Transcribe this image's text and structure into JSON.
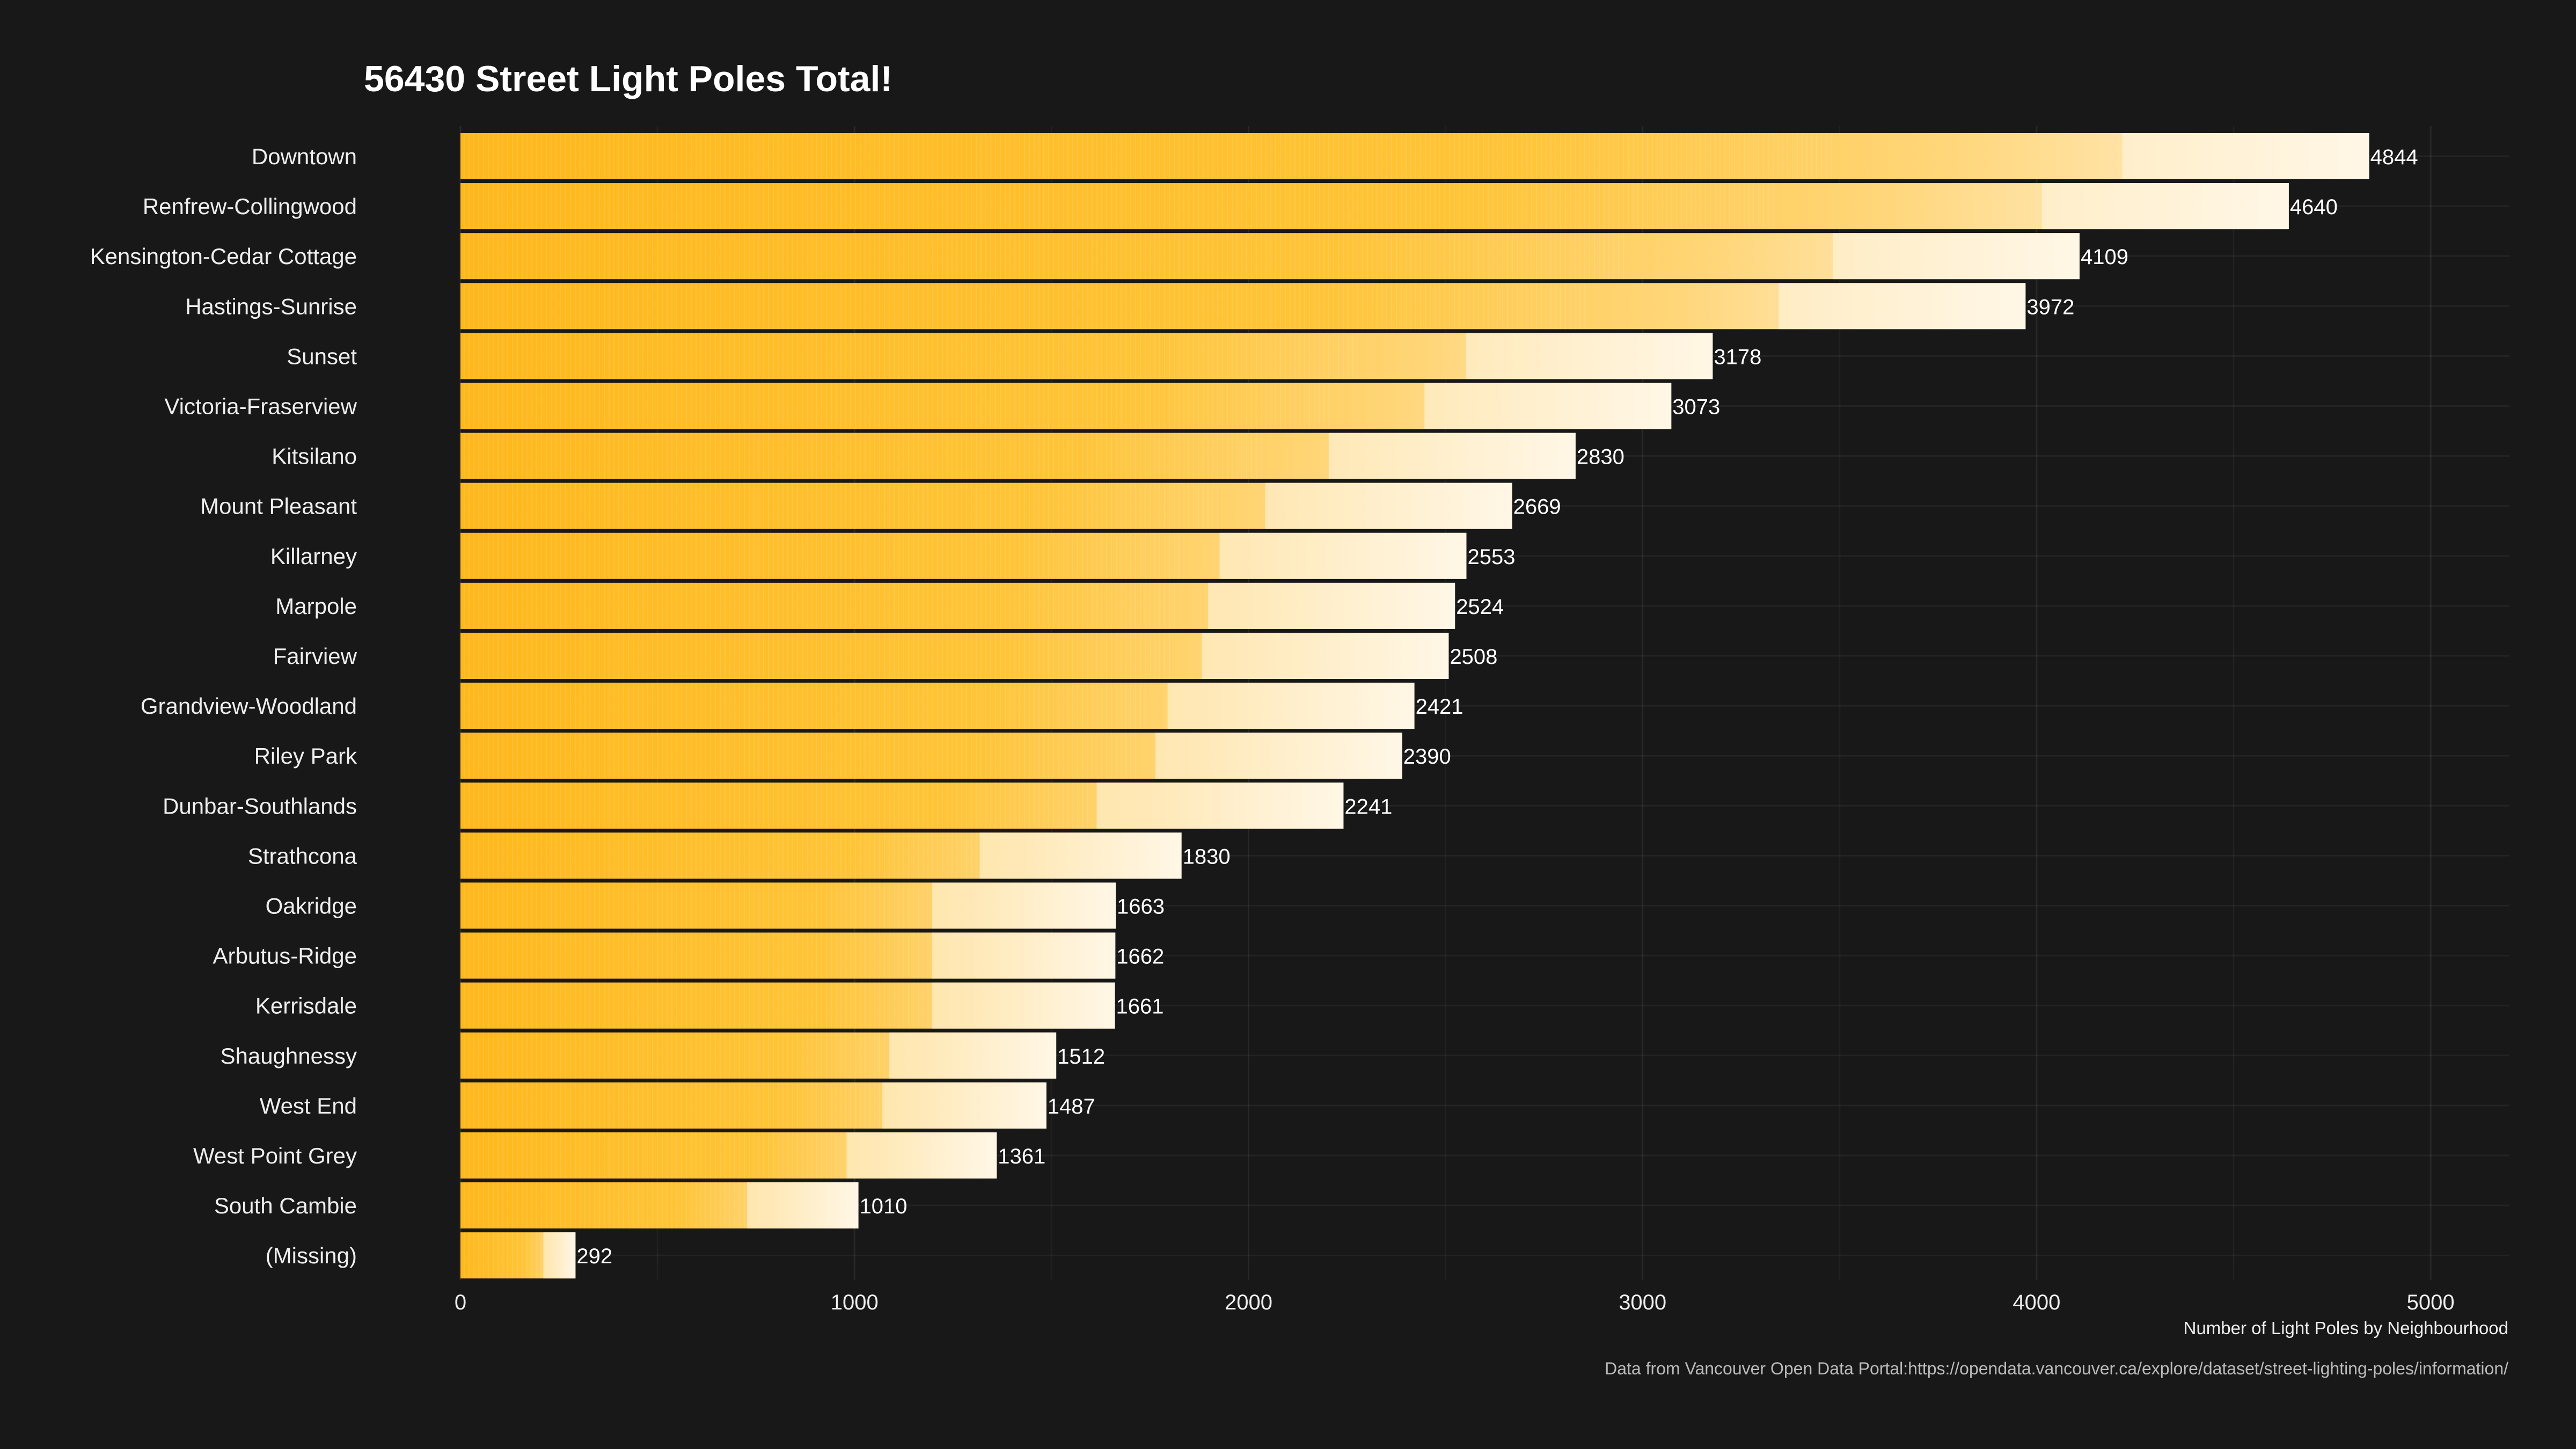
{
  "chart_data": {
    "type": "bar",
    "orientation": "horizontal",
    "title": "56430 Street Light Poles Total!",
    "xlabel": "Number of Light Poles by Neighbourhood",
    "caption": "Data from Vancouver Open Data Portal:https://opendata.vancouver.ca/explore/dataset/street-lighting-poles/information/",
    "xlim": [
      0,
      5200
    ],
    "xticks": [
      0,
      1000,
      2000,
      3000,
      4000,
      5000
    ],
    "grid": true,
    "legend": "none",
    "categories": [
      "Downtown",
      "Renfrew-Collingwood",
      "Kensington-Cedar Cottage",
      "Hastings-Sunrise",
      "Sunset",
      "Victoria-Fraserview",
      "Kitsilano",
      "Mount Pleasant",
      "Killarney",
      "Marpole",
      "Fairview",
      "Grandview-Woodland",
      "Riley Park",
      "Dunbar-Southlands",
      "Strathcona",
      "Oakridge",
      "Arbutus-Ridge",
      "Kerrisdale",
      "Shaughnessy",
      "West End",
      "West Point Grey",
      "South Cambie",
      "(Missing)"
    ],
    "values": [
      4844,
      4640,
      4109,
      3972,
      3178,
      3073,
      2830,
      2669,
      2553,
      2524,
      2508,
      2421,
      2390,
      2241,
      1830,
      1663,
      1662,
      1661,
      1512,
      1487,
      1361,
      1010,
      292
    ],
    "colors": {
      "background": "#181818",
      "gradient_start": "#FFB81C",
      "gradient_end": "#FFF7EA",
      "text": "#EEEEEE"
    }
  }
}
